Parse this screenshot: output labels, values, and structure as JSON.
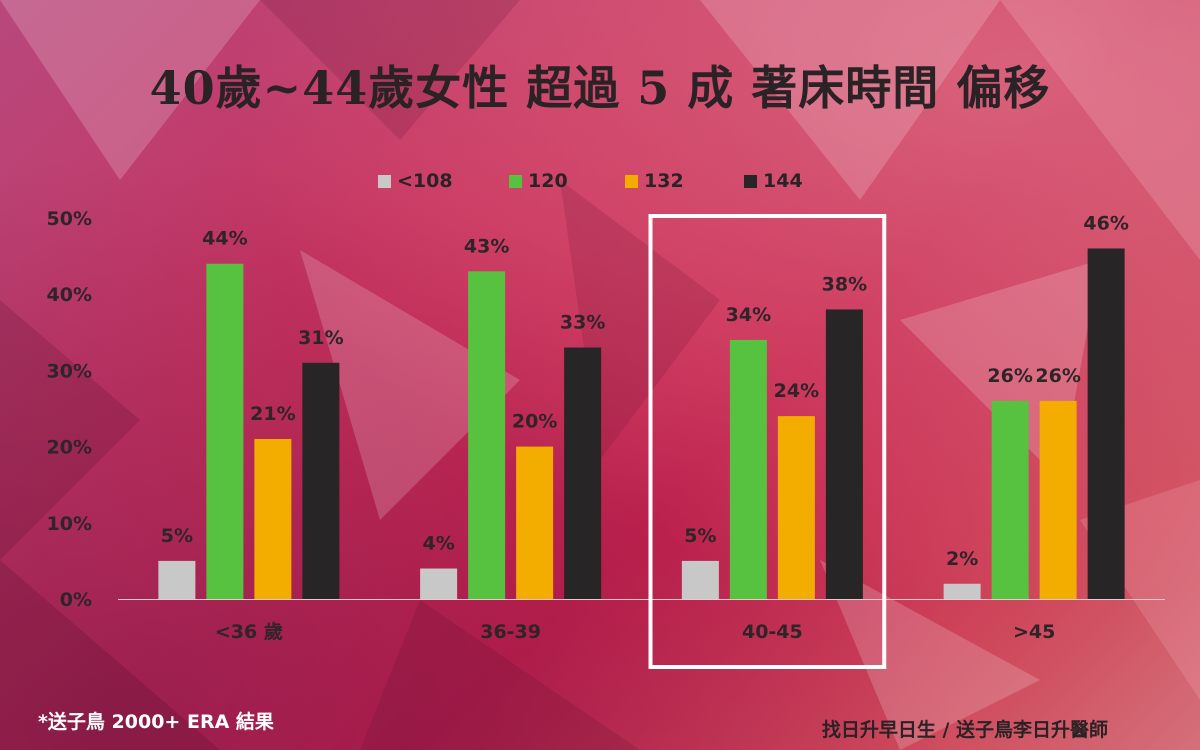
{
  "title": "40歲~44歲女性 超過 5 成 著床時間 偏移",
  "chart_data": {
    "type": "bar",
    "categories": [
      "<36 歲",
      "36-39",
      "40-45",
      ">45"
    ],
    "series": [
      {
        "name": "<108",
        "color": "#c8c8c8",
        "values": [
          5,
          4,
          5,
          2
        ]
      },
      {
        "name": "120",
        "color": "#56c240",
        "values": [
          44,
          43,
          34,
          26
        ]
      },
      {
        "name": "132",
        "color": "#f2ad00",
        "values": [
          21,
          20,
          24,
          26
        ]
      },
      {
        "name": "144",
        "color": "#272525",
        "values": [
          31,
          33,
          38,
          46
        ]
      }
    ],
    "y_ticks": [
      "0%",
      "10%",
      "20%",
      "30%",
      "40%",
      "50%"
    ],
    "ylim": [
      0,
      50
    ],
    "value_suffix": "%",
    "legend_position": "top",
    "grid": false,
    "highlighted_category": "40-45"
  },
  "footnote": "*送子鳥 2000+ ERA 結果",
  "credit": "找日升早日生 / 送子鳥李日升醫師"
}
